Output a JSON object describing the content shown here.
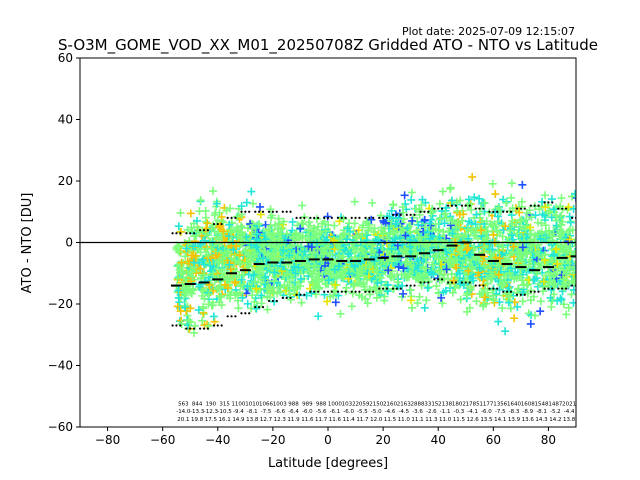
{
  "chart_data": {
    "type": "scatter",
    "title": "S-O3M_GOME_VOD_XX_M01_20250708Z Gridded ATO - NTO vs Latitude",
    "plot_date": "Plot date: 2025-07-09 12:15:07",
    "xlabel": "Latitude [degrees]",
    "ylabel": "ATO - NTO [DU]",
    "xlim": [
      -90,
      90
    ],
    "ylim": [
      -60,
      60
    ],
    "x_ticks": [
      -80,
      -60,
      -40,
      -20,
      0,
      20,
      40,
      60,
      80
    ],
    "y_ticks": [
      -60,
      -40,
      -20,
      0,
      20,
      40,
      60
    ],
    "x_tick_labels": [
      "−80",
      "−60",
      "−40",
      "−20",
      "0",
      "20",
      "40",
      "60",
      "80"
    ],
    "y_tick_labels": [
      "−60",
      "−40",
      "−20",
      "0",
      "20",
      "40",
      "60"
    ],
    "grid": false,
    "zero_line": 0,
    "marker": "plus",
    "colors": {
      "dominant": "#7cff7c",
      "secondary": "#22e6d6",
      "warm": "#f5c400",
      "yellow": "#e6e600",
      "blue": "#1e50ff",
      "deep_blue": "#0000cc",
      "dots": "#000000",
      "mean_line": "#000000"
    },
    "mean_curve": {
      "x": [
        -55,
        -50,
        -45,
        -40,
        -35,
        -30,
        -25,
        -20,
        -15,
        -10,
        -5,
        0,
        5,
        10,
        15,
        20,
        25,
        30,
        35,
        40,
        45,
        50,
        55,
        60,
        65,
        70,
        75,
        80,
        85,
        90
      ],
      "y": [
        -14,
        -13.5,
        -13,
        -12,
        -10,
        -9,
        -7,
        -6.5,
        -6.5,
        -6,
        -5.5,
        -5.5,
        -6,
        -6,
        -5.5,
        -5,
        -4.5,
        -4.5,
        -3.5,
        -2.5,
        -1,
        0,
        -4,
        -6,
        -7,
        -8,
        -9,
        -8,
        -5,
        -4.5
      ]
    },
    "upper_dots": {
      "x": [
        -55,
        -50,
        -45,
        -40,
        -35,
        -30,
        -25,
        -20,
        -15,
        -10,
        -5,
        0,
        5,
        10,
        15,
        20,
        25,
        30,
        35,
        40,
        45,
        50,
        55,
        60,
        65,
        70,
        75,
        80,
        85,
        90
      ],
      "y": [
        3,
        3,
        4,
        6,
        8,
        10,
        10,
        10,
        10,
        8,
        8,
        8,
        8,
        8,
        8,
        8,
        9,
        9,
        10,
        11,
        12,
        12,
        11,
        10,
        10,
        11,
        12,
        13,
        11,
        8
      ]
    },
    "lower_dots": {
      "x": [
        -55,
        -50,
        -45,
        -40,
        -35,
        -30,
        -25,
        -20,
        -15,
        -10,
        -5,
        0,
        5,
        10,
        15,
        20,
        25,
        30,
        35,
        40,
        45,
        50,
        55,
        60,
        65,
        70,
        75,
        80,
        85,
        90
      ],
      "y": [
        -27,
        -28,
        -28,
        -27,
        -24,
        -23,
        -21,
        -19,
        -18,
        -17,
        -16,
        -16,
        -16,
        -16,
        -16,
        -15,
        -15,
        -14,
        -13,
        -12,
        -13,
        -13,
        -14,
        -15,
        -16,
        -17,
        -16,
        -15,
        -15,
        -14
      ]
    },
    "bin_stats": {
      "x": [
        -52.5,
        -47.5,
        -42.5,
        -37.5,
        -32.5,
        -27.5,
        -22.5,
        -17.5,
        -12.5,
        -7.5,
        -2.5,
        2.5,
        7.5,
        12.5,
        17.5,
        22.5,
        27.5,
        32.5,
        37.5,
        42.5,
        47.5,
        52.5,
        57.5,
        62.5,
        67.5,
        72.5,
        77.5,
        82.5,
        87.5
      ],
      "count": [
        "563",
        "844",
        "190",
        "315",
        "1100",
        "1010",
        "1066",
        "1003",
        "988",
        "989",
        "988",
        "1000",
        "1032",
        "2059",
        "2150",
        "2160",
        "2163",
        "2888",
        "3315",
        "2138",
        "1802",
        "1785",
        "1177",
        "1356",
        "1640",
        "1608",
        "1548",
        "1487",
        "2021"
      ],
      "mean": [
        "-14.0",
        "-13.3",
        "-12.3",
        "-10.5",
        "-9.4",
        "-8.1",
        "-7.5",
        "-6.6",
        "-6.4",
        "-6.0",
        "-5.6",
        "-6.1",
        "-6.0",
        "-5.5",
        "-5.0",
        "-4.6",
        "-4.5",
        "-3.6",
        "-2.6",
        "-1.1",
        "-0.3",
        "-4.1",
        "-6.0",
        "-7.5",
        "-8.3",
        "-8.9",
        "-8.1",
        "-5.2",
        "-4.4"
      ],
      "std": [
        "20.1",
        "19.8",
        "17.5",
        "16.1",
        "14.9",
        "13.8",
        "12.7",
        "12.3",
        "11.9",
        "11.6",
        "11.7",
        "11.6",
        "11.4",
        "11.7",
        "12.0",
        "11.5",
        "11.0",
        "11.1",
        "11.3",
        "11.0",
        "11.5",
        "12.6",
        "13.5",
        "14.1",
        "13.9",
        "13.6",
        "14.3",
        "14.2",
        "13.8"
      ]
    },
    "scatter_regions": [
      {
        "x": [
          -55,
          -50
        ],
        "y_center": -12,
        "spread": 26,
        "density": 0.9
      },
      {
        "x": [
          -50,
          -40
        ],
        "y_center": -6,
        "spread": 28,
        "density": 1.0
      },
      {
        "x": [
          -40,
          -20
        ],
        "y_center": -5,
        "spread": 22,
        "density": 1.0
      },
      {
        "x": [
          -20,
          20
        ],
        "y_center": -5,
        "spread": 18,
        "density": 1.0
      },
      {
        "x": [
          20,
          50
        ],
        "y_center": -2,
        "spread": 22,
        "density": 1.0
      },
      {
        "x": [
          50,
          90
        ],
        "y_center": -4,
        "spread": 26,
        "density": 1.0
      }
    ]
  }
}
